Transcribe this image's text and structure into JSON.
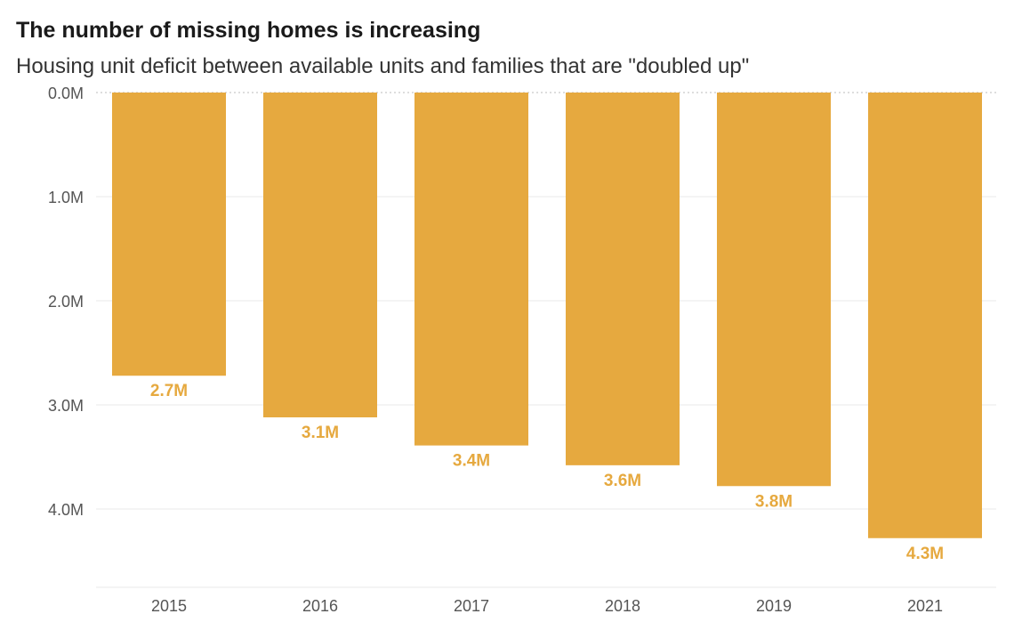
{
  "chart_data": {
    "type": "bar",
    "title": "The number of missing homes is increasing",
    "subtitle": "Housing unit deficit between available units and families that are \"doubled up\"",
    "categories": [
      "2015",
      "2016",
      "2017",
      "2018",
      "2019",
      "2021"
    ],
    "values": [
      2.72,
      3.12,
      3.39,
      3.58,
      3.78,
      4.28
    ],
    "value_labels": [
      "2.7M",
      "3.1M",
      "3.4M",
      "3.6M",
      "3.8M",
      "4.3M"
    ],
    "y_ticks": [
      0,
      1,
      2,
      3,
      4
    ],
    "y_tick_labels": [
      "0.0M",
      "1.0M",
      "2.0M",
      "3.0M",
      "4.0M"
    ],
    "ylim": [
      0,
      4.8
    ],
    "y_inverted": true,
    "grid": true,
    "xlabel": "",
    "ylabel": "",
    "colors": {
      "bar": "#E6A93F",
      "label": "#E6A93F",
      "grid": "#e8e8e8",
      "zero_line": "#bbbbbb",
      "text": "#555555"
    }
  }
}
